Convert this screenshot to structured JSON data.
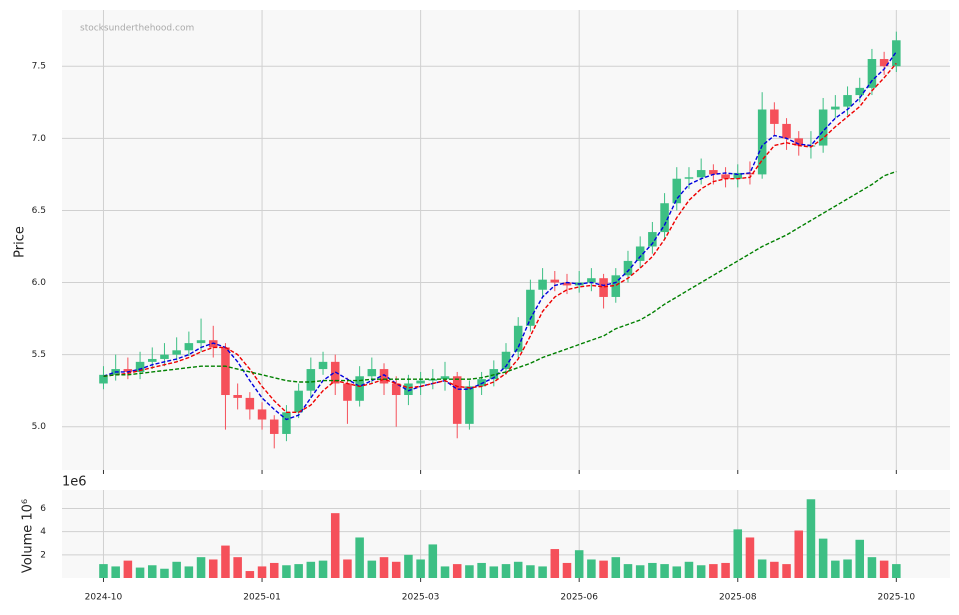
{
  "chart_data": {
    "type": "candlestick",
    "watermark": "stocksunderthehood.com",
    "ylabel": "Price",
    "volume_label": "Volume  10⁶",
    "volume_offset": "1e6",
    "up_color": "#3dbf84",
    "down_color": "#f5505a",
    "grid": true,
    "xlim": [
      -3.4,
      69.4
    ],
    "xticks": [
      {
        "value": 0,
        "label": "2024-10"
      },
      {
        "value": 13,
        "label": "2025-01"
      },
      {
        "value": 26,
        "label": "2025-03"
      },
      {
        "value": 39,
        "label": "2025-06"
      },
      {
        "value": 52,
        "label": "2025-08"
      },
      {
        "value": 65,
        "label": "2025-10"
      }
    ],
    "ylim": [
      4.7,
      7.89
    ],
    "yticks": [
      {
        "value": 5.0,
        "label": "5.0"
      },
      {
        "value": 5.5,
        "label": "5.5"
      },
      {
        "value": 6.0,
        "label": "6.0"
      },
      {
        "value": 6.5,
        "label": "6.5"
      },
      {
        "value": 7.0,
        "label": "7.0"
      },
      {
        "value": 7.5,
        "label": "7.5"
      }
    ],
    "vol_ylim": [
      0,
      7.6
    ],
    "vol_yticks": [
      2,
      4,
      6
    ],
    "open": [
      5.3,
      5.36,
      5.4,
      5.38,
      5.45,
      5.47,
      5.5,
      5.53,
      5.58,
      5.6,
      5.55,
      5.22,
      5.2,
      5.12,
      5.05,
      4.95,
      5.1,
      5.25,
      5.4,
      5.45,
      5.3,
      5.18,
      5.35,
      5.4,
      5.3,
      5.22,
      5.3,
      5.32,
      5.33,
      5.35,
      5.02,
      5.28,
      5.33,
      5.4,
      5.52,
      5.7,
      5.95,
      6.02,
      6.0,
      5.98,
      6.0,
      6.03,
      5.9,
      6.05,
      6.15,
      6.25,
      6.35,
      6.55,
      6.72,
      6.73,
      6.78,
      6.75,
      6.72,
      6.76,
      6.75,
      7.2,
      7.1,
      7.0,
      6.95,
      6.95,
      7.2,
      7.22,
      7.3,
      7.35,
      7.55,
      7.5
    ],
    "high": [
      5.42,
      5.5,
      5.48,
      5.52,
      5.55,
      5.58,
      5.62,
      5.66,
      5.75,
      5.7,
      5.58,
      5.3,
      5.24,
      5.17,
      5.08,
      5.15,
      5.3,
      5.48,
      5.52,
      5.5,
      5.34,
      5.42,
      5.48,
      5.44,
      5.35,
      5.36,
      5.38,
      5.4,
      5.45,
      5.38,
      5.32,
      5.38,
      5.46,
      5.58,
      5.76,
      6.02,
      6.1,
      6.08,
      6.06,
      6.08,
      6.1,
      6.06,
      6.1,
      6.22,
      6.32,
      6.42,
      6.62,
      6.8,
      6.8,
      6.86,
      6.82,
      6.8,
      6.82,
      6.84,
      7.32,
      7.25,
      7.14,
      7.05,
      7.05,
      7.28,
      7.3,
      7.36,
      7.42,
      7.62,
      7.6,
      7.74
    ],
    "low": [
      5.26,
      5.32,
      5.33,
      5.33,
      5.4,
      5.42,
      5.46,
      5.49,
      5.52,
      5.48,
      4.98,
      5.12,
      5.05,
      4.98,
      4.85,
      4.9,
      5.06,
      5.2,
      5.36,
      5.22,
      5.02,
      5.14,
      5.3,
      5.22,
      5.0,
      5.15,
      5.22,
      5.26,
      5.25,
      4.92,
      4.98,
      5.22,
      5.28,
      5.36,
      5.48,
      5.66,
      5.9,
      5.94,
      5.92,
      5.93,
      5.94,
      5.82,
      5.86,
      6.0,
      6.1,
      6.2,
      6.3,
      6.5,
      6.65,
      6.68,
      6.68,
      6.66,
      6.66,
      6.68,
      6.72,
      7.02,
      6.92,
      6.88,
      6.86,
      6.9,
      7.14,
      7.16,
      7.25,
      7.3,
      7.44,
      7.46
    ],
    "close": [
      5.36,
      5.4,
      5.38,
      5.45,
      5.47,
      5.5,
      5.53,
      5.58,
      5.6,
      5.55,
      5.22,
      5.2,
      5.12,
      5.05,
      4.95,
      5.1,
      5.25,
      5.4,
      5.45,
      5.3,
      5.18,
      5.35,
      5.4,
      5.3,
      5.22,
      5.3,
      5.32,
      5.33,
      5.35,
      5.02,
      5.28,
      5.33,
      5.4,
      5.52,
      5.7,
      5.95,
      6.02,
      6.0,
      5.98,
      6.0,
      6.03,
      5.9,
      6.05,
      6.15,
      6.25,
      6.35,
      6.55,
      6.72,
      6.73,
      6.78,
      6.75,
      6.72,
      6.76,
      6.75,
      7.2,
      7.1,
      7.0,
      6.95,
      6.95,
      7.2,
      7.22,
      7.3,
      7.35,
      7.55,
      7.5,
      7.68
    ],
    "volume": [
      1.2,
      1.0,
      1.5,
      0.9,
      1.1,
      0.8,
      1.4,
      1.0,
      1.8,
      1.6,
      2.8,
      1.8,
      0.6,
      1.0,
      1.3,
      1.1,
      1.2,
      1.4,
      1.5,
      5.6,
      1.6,
      3.5,
      1.5,
      1.8,
      1.4,
      2.0,
      1.6,
      2.9,
      1.0,
      1.2,
      1.1,
      1.3,
      1.0,
      1.2,
      1.4,
      1.1,
      1.0,
      2.5,
      1.3,
      2.4,
      1.6,
      1.5,
      1.8,
      1.2,
      1.1,
      1.3,
      1.2,
      1.0,
      1.4,
      1.1,
      1.2,
      1.3,
      4.2,
      3.5,
      1.6,
      1.4,
      1.2,
      4.1,
      6.8,
      3.4,
      1.5,
      1.6,
      3.3,
      1.8,
      1.5,
      1.2
    ],
    "series": [
      {
        "color": "#0000dd",
        "values": [
          5.35,
          5.38,
          5.38,
          5.4,
          5.43,
          5.45,
          5.47,
          5.5,
          5.55,
          5.58,
          5.55,
          5.45,
          5.32,
          5.2,
          5.12,
          5.05,
          5.08,
          5.2,
          5.32,
          5.38,
          5.33,
          5.28,
          5.32,
          5.36,
          5.3,
          5.25,
          5.28,
          5.3,
          5.32,
          5.26,
          5.26,
          5.3,
          5.34,
          5.42,
          5.55,
          5.75,
          5.9,
          5.98,
          6.0,
          5.99,
          6.0,
          5.98,
          6.0,
          6.08,
          6.18,
          6.27,
          6.4,
          6.58,
          6.68,
          6.72,
          6.75,
          6.76,
          6.75,
          6.76,
          6.95,
          7.02,
          7.0,
          6.96,
          6.95,
          7.05,
          7.14,
          7.2,
          7.28,
          7.4,
          7.48,
          7.6
        ]
      },
      {
        "color": "#ee0000",
        "values": [
          5.35,
          5.36,
          5.37,
          5.39,
          5.41,
          5.43,
          5.45,
          5.48,
          5.52,
          5.55,
          5.55,
          5.5,
          5.4,
          5.28,
          5.18,
          5.1,
          5.1,
          5.15,
          5.25,
          5.32,
          5.3,
          5.28,
          5.3,
          5.33,
          5.3,
          5.27,
          5.28,
          5.3,
          5.32,
          5.28,
          5.27,
          5.28,
          5.31,
          5.37,
          5.47,
          5.63,
          5.8,
          5.9,
          5.95,
          5.97,
          5.98,
          5.97,
          5.98,
          6.03,
          6.1,
          6.18,
          6.3,
          6.45,
          6.57,
          6.65,
          6.7,
          6.72,
          6.72,
          6.73,
          6.85,
          6.95,
          6.97,
          6.95,
          6.94,
          7.0,
          7.08,
          7.15,
          7.22,
          7.33,
          7.42,
          7.52
        ]
      },
      {
        "color": "#008000",
        "values": [
          5.35,
          5.36,
          5.36,
          5.37,
          5.38,
          5.39,
          5.4,
          5.41,
          5.42,
          5.42,
          5.42,
          5.4,
          5.38,
          5.36,
          5.34,
          5.32,
          5.31,
          5.31,
          5.32,
          5.32,
          5.32,
          5.32,
          5.33,
          5.33,
          5.33,
          5.33,
          5.33,
          5.33,
          5.33,
          5.33,
          5.33,
          5.34,
          5.36,
          5.38,
          5.41,
          5.44,
          5.48,
          5.51,
          5.54,
          5.57,
          5.6,
          5.63,
          5.68,
          5.71,
          5.74,
          5.79,
          5.85,
          5.9,
          5.95,
          6.0,
          6.05,
          6.1,
          6.15,
          6.2,
          6.25,
          6.29,
          6.33,
          6.38,
          6.43,
          6.48,
          6.53,
          6.58,
          6.63,
          6.68,
          6.74,
          6.77
        ]
      }
    ]
  }
}
